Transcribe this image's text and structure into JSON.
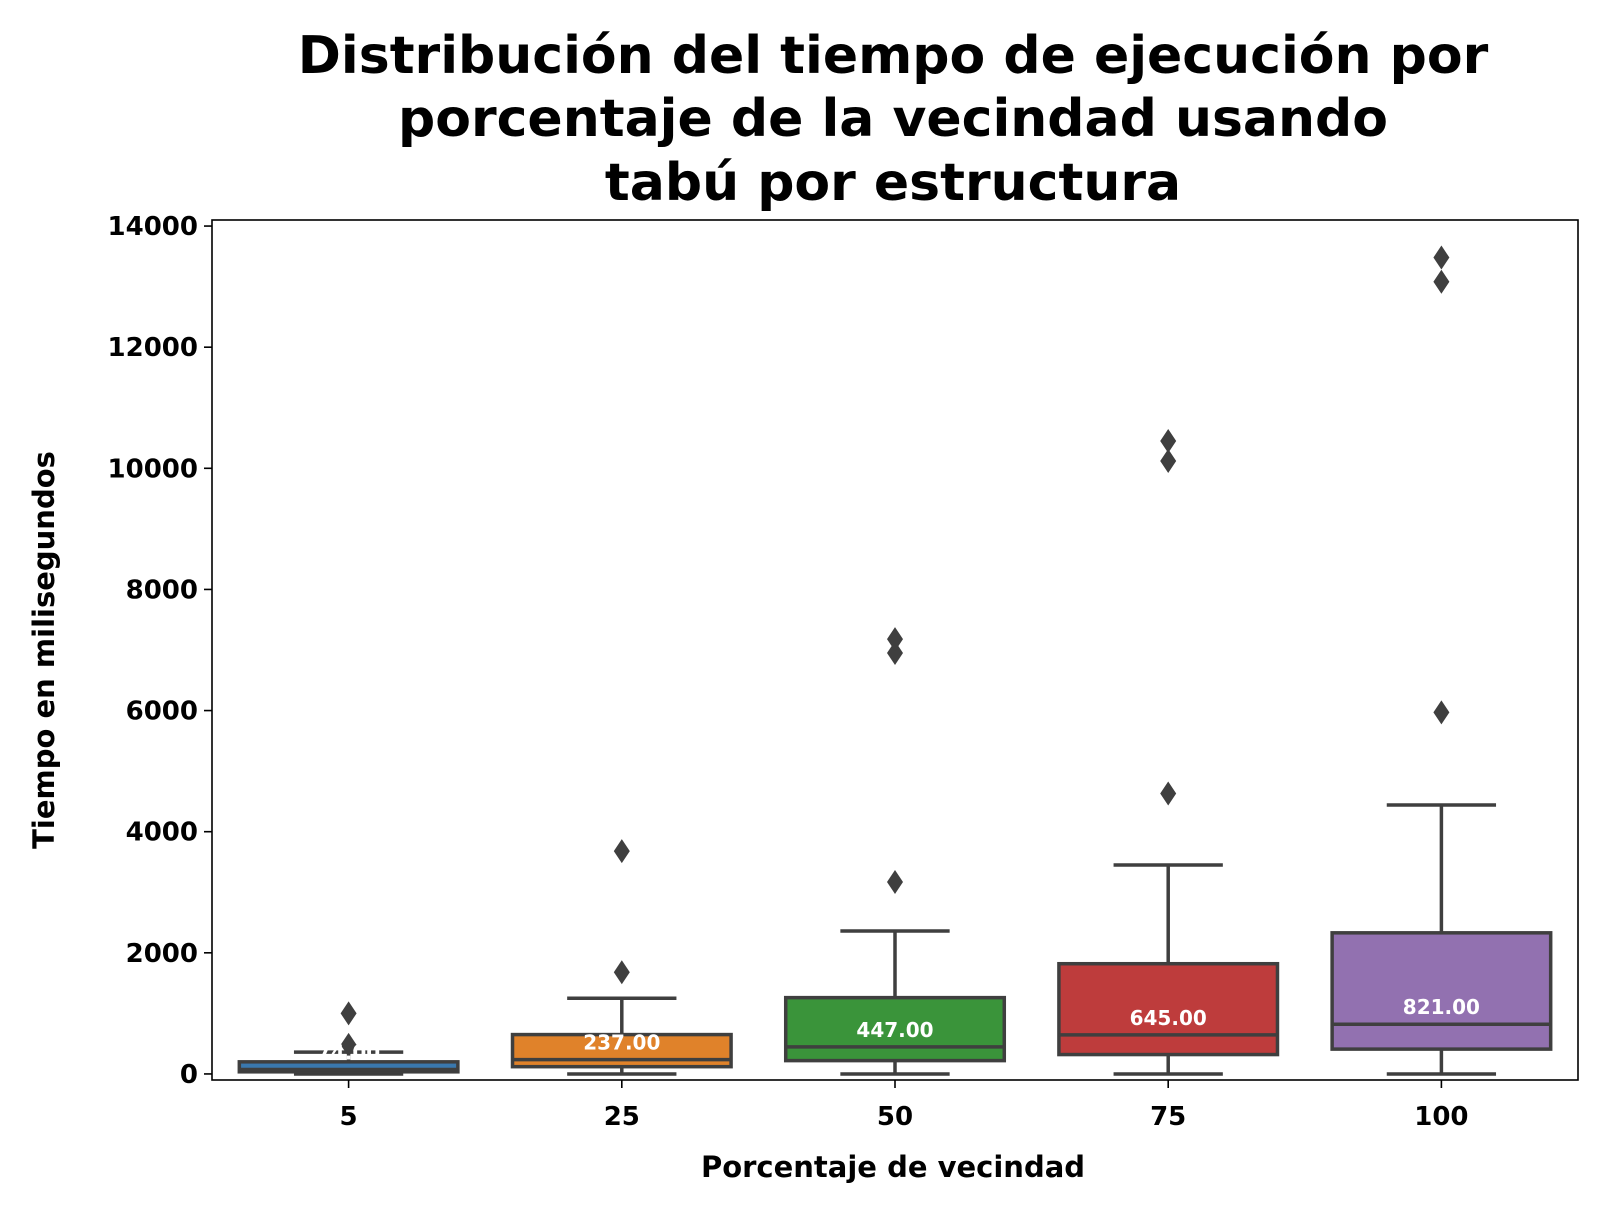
{
  "chart_data": {
    "type": "box",
    "title": [
      "Distribución del tiempo de ejecución por",
      "porcentaje de la vecindad usando",
      "tabú por estructura"
    ],
    "xlabel": "Porcentaje de vecindad",
    "ylabel": "Tiempo en milisegundos",
    "ylim": [
      -100,
      14100
    ],
    "yticks": [
      0,
      2000,
      4000,
      6000,
      8000,
      10000,
      12000,
      14000
    ],
    "categories": [
      "5",
      "25",
      "50",
      "75",
      "100"
    ],
    "colors": [
      "#3a78ae",
      "#e0822a",
      "#3a943a",
      "#be3c3c",
      "#9271b0"
    ],
    "edge_color": "#3f3f3f",
    "boxes": [
      {
        "category": "5",
        "whisker_low": 0,
        "q1": 35,
        "median": 74,
        "q3": 200,
        "whisker_high": 360,
        "outliers": [
          480,
          1000
        ],
        "median_label": "74.00"
      },
      {
        "category": "25",
        "whisker_low": 0,
        "q1": 120,
        "median": 237,
        "q3": 650,
        "whisker_high": 1250,
        "outliers": [
          1680,
          3680
        ],
        "median_label": "237.00"
      },
      {
        "category": "50",
        "whisker_low": 0,
        "q1": 220,
        "median": 447,
        "q3": 1260,
        "whisker_high": 2360,
        "outliers": [
          3170,
          6950,
          7180
        ],
        "median_label": "447.00"
      },
      {
        "category": "75",
        "whisker_low": 0,
        "q1": 320,
        "median": 645,
        "q3": 1820,
        "whisker_high": 3450,
        "outliers": [
          4630,
          10120,
          10450
        ],
        "median_label": "645.00"
      },
      {
        "category": "100",
        "whisker_low": 0,
        "q1": 410,
        "median": 821,
        "q3": 2330,
        "whisker_high": 4440,
        "outliers": [
          5970,
          13080,
          13480
        ],
        "median_label": "821.00"
      }
    ]
  }
}
